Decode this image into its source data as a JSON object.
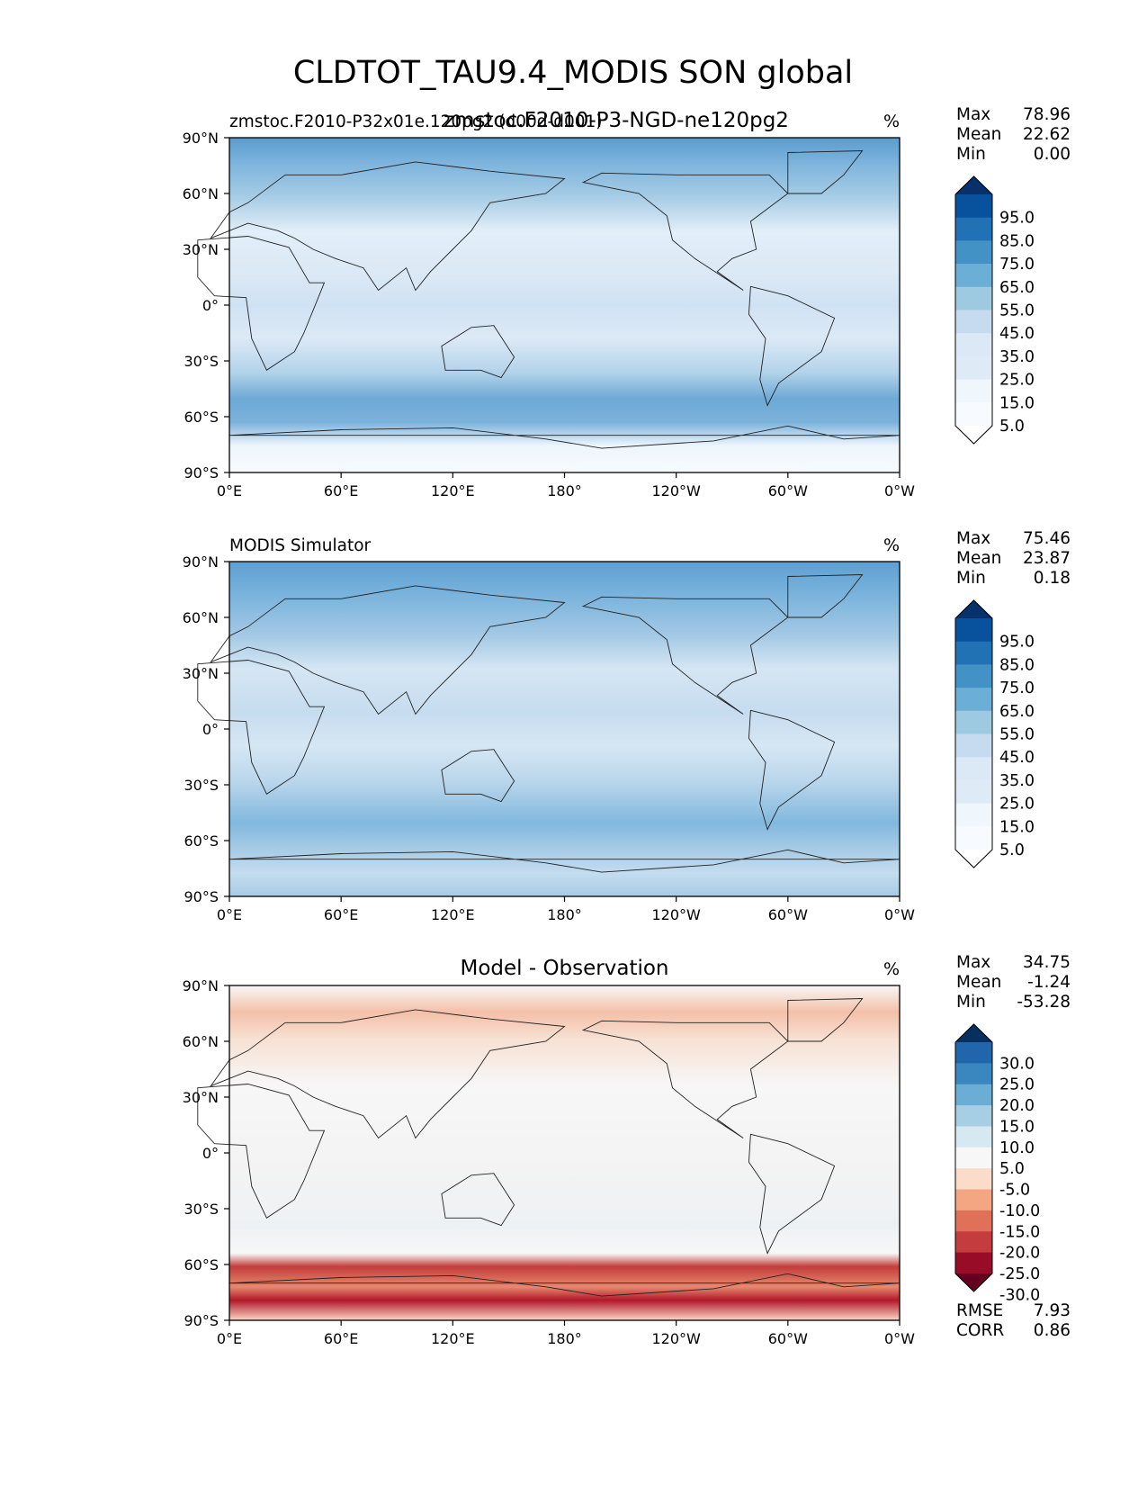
{
  "figure": {
    "title": "CLDTOT_TAU9.4_MODIS SON global"
  },
  "axes": {
    "lat_ticks": [
      "90°N",
      "60°N",
      "30°N",
      "0°",
      "30°S",
      "60°S",
      "90°S"
    ],
    "lon_ticks": [
      "0°E",
      "60°E",
      "120°E",
      "180°",
      "120°W",
      "60°W",
      "0°W"
    ]
  },
  "chart_data": [
    {
      "type": "heatmap",
      "left_title": "zmstoc.F2010-P32x01e.120pg2 (d00d-d001)",
      "center_title": "zmstoc.F2010-P3-NGD-ne120pg2",
      "units": "%",
      "x_range": [
        0,
        360
      ],
      "y_range": [
        -90,
        90
      ],
      "stats": [
        {
          "label": "Max",
          "value": "78.96"
        },
        {
          "label": "Mean",
          "value": "22.62"
        },
        {
          "label": "Min",
          "value": "0.00"
        }
      ],
      "colorbar": {
        "extend": "both",
        "tick_labels": [
          "95.0",
          "85.0",
          "75.0",
          "65.0",
          "55.0",
          "45.0",
          "35.0",
          "25.0",
          "15.0",
          "5.0"
        ],
        "colors": [
          "#08306b",
          "#08519c",
          "#2171b5",
          "#4292c6",
          "#6baed6",
          "#9ecae1",
          "#c6dbef",
          "#dbe9f6",
          "#deebf7",
          "#eff6fc",
          "#f7fbff",
          "#ffffff"
        ]
      }
    },
    {
      "type": "heatmap",
      "left_title": "MODIS Simulator",
      "center_title": "",
      "units": "%",
      "x_range": [
        0,
        360
      ],
      "y_range": [
        -90,
        90
      ],
      "stats": [
        {
          "label": "Max",
          "value": "75.46"
        },
        {
          "label": "Mean",
          "value": "23.87"
        },
        {
          "label": "Min",
          "value": "0.18"
        }
      ],
      "colorbar": {
        "extend": "both",
        "tick_labels": [
          "95.0",
          "85.0",
          "75.0",
          "65.0",
          "55.0",
          "45.0",
          "35.0",
          "25.0",
          "15.0",
          "5.0"
        ],
        "colors": [
          "#08306b",
          "#08519c",
          "#2171b5",
          "#4292c6",
          "#6baed6",
          "#9ecae1",
          "#c6dbef",
          "#dbe9f6",
          "#deebf7",
          "#eff6fc",
          "#f7fbff",
          "#ffffff"
        ]
      }
    },
    {
      "type": "heatmap",
      "left_title": "",
      "center_title": "Model - Observation",
      "units": "%",
      "x_range": [
        0,
        360
      ],
      "y_range": [
        -90,
        90
      ],
      "stats": [
        {
          "label": "Max",
          "value": "34.75"
        },
        {
          "label": "Mean",
          "value": "-1.24"
        },
        {
          "label": "Min",
          "value": "-53.28"
        }
      ],
      "bottom_stats": [
        {
          "label": "RMSE",
          "value": "7.93"
        },
        {
          "label": "CORR",
          "value": "0.86"
        }
      ],
      "colorbar": {
        "extend": "both",
        "tick_labels": [
          "30.0",
          "25.0",
          "20.0",
          "15.0",
          "10.0",
          "5.0",
          "-5.0",
          "-10.0",
          "-15.0",
          "-20.0",
          "-25.0",
          "-30.0"
        ],
        "colors": [
          "#053061",
          "#2166ac",
          "#3a87c0",
          "#6aaed5",
          "#a7cfe4",
          "#d6e8f1",
          "#f7f7f7",
          "#fbdcc8",
          "#f4a582",
          "#e07058",
          "#c43c3c",
          "#980c27",
          "#67001f"
        ]
      }
    }
  ]
}
